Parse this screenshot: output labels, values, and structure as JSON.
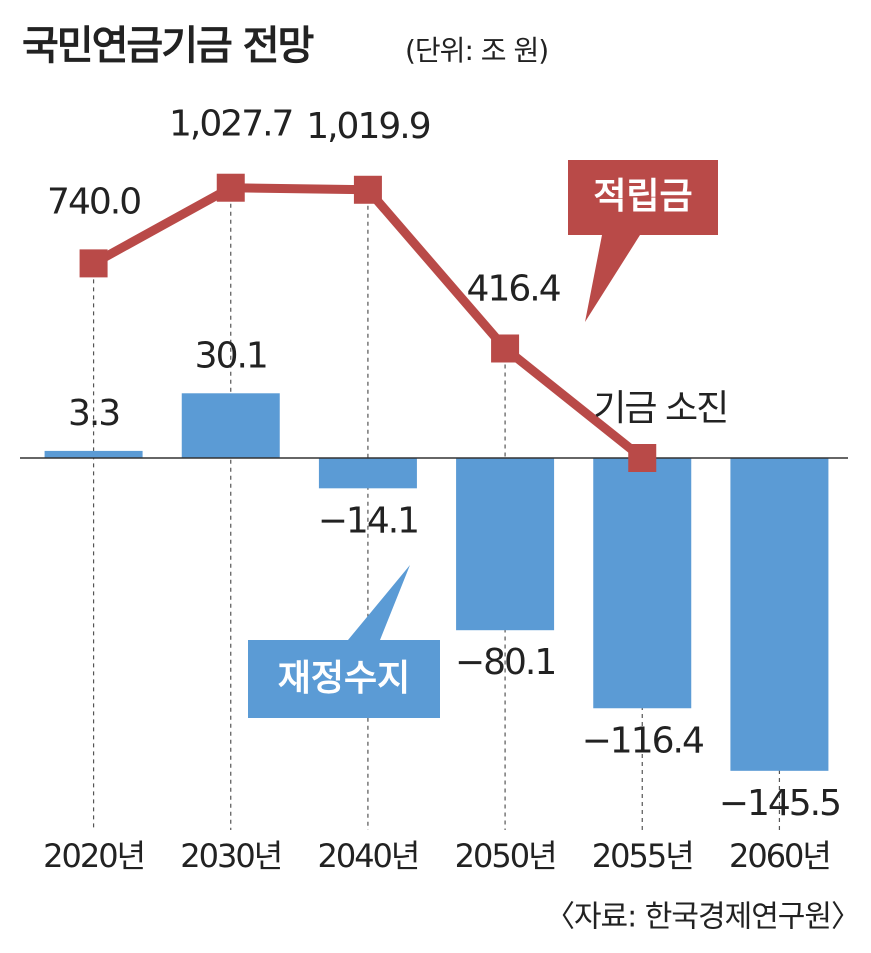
{
  "chart_data": {
    "type": "combo",
    "title": "국민연금기금 전망",
    "subtitle": "(단위: 조 원)",
    "source": "〈자료: 한국경제연구원〉",
    "categories": [
      "2020년",
      "2030년",
      "2040년",
      "2050년",
      "2055년",
      "2060년"
    ],
    "series": [
      {
        "name": "재정수지",
        "kind": "bar",
        "color": "#5b9bd5",
        "values": [
          3.3,
          30.1,
          -14.1,
          -80.1,
          -116.4,
          -145.5
        ],
        "value_labels": [
          "3.3",
          "30.1",
          "−14.1",
          "−80.1",
          "−116.4",
          "−145.5"
        ]
      },
      {
        "name": "적립금",
        "kind": "line",
        "axis": "y2",
        "color": "#b94a48",
        "values": [
          740.0,
          1027.7,
          1019.9,
          416.4,
          0,
          null
        ],
        "value_labels": [
          "740.0",
          "1,027.7",
          "1,019.9",
          "416.4",
          null,
          null
        ]
      }
    ],
    "ylim": [
      -200,
      200
    ],
    "y2lim": [
      -1635,
      1635
    ],
    "annotations": [
      {
        "text": "기금 소진",
        "category": 4
      }
    ]
  }
}
